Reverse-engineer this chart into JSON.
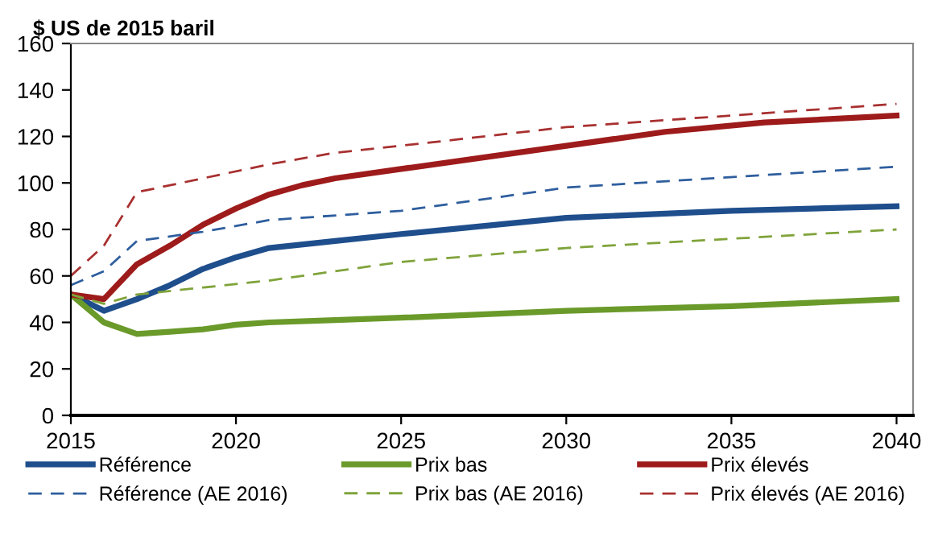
{
  "chart_data": {
    "type": "line",
    "ylabel": "$ US de 2015 baril",
    "xlim": [
      2015,
      2040.5
    ],
    "xticks": [
      2015,
      2020,
      2025,
      2030,
      2035,
      2040
    ],
    "ylim": [
      0,
      160
    ],
    "yticks": [
      0,
      20,
      40,
      60,
      80,
      100,
      120,
      140,
      160
    ],
    "grid": false,
    "legend": "bottom",
    "marker": "none",
    "series": [
      {
        "name": "Référence",
        "color": "#1f4e8c",
        "line_style": "solid",
        "x": [
          2015,
          2016,
          2017,
          2018,
          2019,
          2020,
          2021,
          2023,
          2025,
          2030,
          2035,
          2040
        ],
        "values": [
          52,
          45,
          50,
          56,
          63,
          68,
          72,
          75,
          78,
          85,
          88,
          90
        ]
      },
      {
        "name": "Prix bas",
        "color": "#6a9a2a",
        "line_style": "solid",
        "x": [
          2015,
          2016,
          2017,
          2018,
          2019,
          2020,
          2021,
          2023,
          2025,
          2030,
          2035,
          2040
        ],
        "values": [
          52,
          40,
          35,
          36,
          37,
          39,
          40,
          41,
          42,
          45,
          47,
          50
        ]
      },
      {
        "name": "Prix élevés",
        "color": "#9e1b1b",
        "line_style": "solid",
        "x": [
          2015,
          2016,
          2017,
          2018,
          2019,
          2020,
          2021,
          2022,
          2023,
          2025,
          2030,
          2033,
          2036,
          2040
        ],
        "values": [
          52,
          50,
          65,
          73,
          82,
          89,
          95,
          99,
          102,
          106,
          116,
          122,
          126,
          129
        ]
      },
      {
        "name": "Référence (AE 2016)",
        "color": "#2e5e9e",
        "line_style": "dashed",
        "x": [
          2015,
          2016,
          2017,
          2019,
          2021,
          2025,
          2030,
          2040
        ],
        "values": [
          56,
          62,
          75,
          79,
          84,
          88,
          98,
          107
        ]
      },
      {
        "name": "Prix bas (AE 2016)",
        "color": "#7fa33a",
        "line_style": "dashed",
        "x": [
          2015,
          2016,
          2017,
          2019,
          2021,
          2023,
          2025,
          2030,
          2040
        ],
        "values": [
          52,
          48,
          52,
          55,
          58,
          62,
          66,
          72,
          80
        ]
      },
      {
        "name": "Prix élevés (AE 2016)",
        "color": "#a83030",
        "line_style": "dashed",
        "x": [
          2015,
          2016,
          2017,
          2019,
          2021,
          2023,
          2025,
          2030,
          2040
        ],
        "values": [
          60,
          73,
          96,
          102,
          108,
          113,
          116,
          124,
          134
        ]
      }
    ]
  }
}
